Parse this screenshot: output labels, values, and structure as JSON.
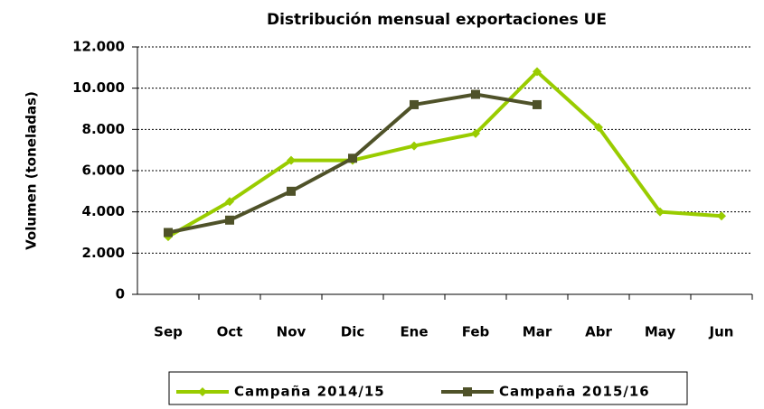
{
  "chart_data": {
    "type": "line",
    "title": "Distribución mensual exportaciones UE",
    "y_label": "Volumen (toneladas)",
    "categories": [
      "Sep",
      "Oct",
      "Nov",
      "Dic",
      "Ene",
      "Feb",
      "Mar",
      "Abr",
      "May",
      "Jun"
    ],
    "series": [
      {
        "name": "Campaña 2014/15",
        "color": "#99cc00",
        "values": [
          2800,
          4500,
          6500,
          6500,
          7200,
          7800,
          10800,
          8100,
          4000,
          3800
        ]
      },
      {
        "name": "Campaña 2015/16",
        "color": "#4f5229",
        "values": [
          3000,
          3600,
          5000,
          6600,
          9200,
          9700,
          9200,
          null,
          null,
          null
        ]
      }
    ],
    "ylim": [
      0,
      12000
    ],
    "yticks": [
      0,
      {
        "value": 2000,
        "label": "2.000"
      },
      {
        "value": 4000,
        "label": "4.000"
      },
      {
        "value": 6000,
        "label": "6.000"
      },
      {
        "value": 8000,
        "label": "8.000"
      },
      {
        "value": 10000,
        "label": "10.000"
      },
      {
        "value": 12000,
        "label": "12.000"
      }
    ],
    "grid": true
  }
}
